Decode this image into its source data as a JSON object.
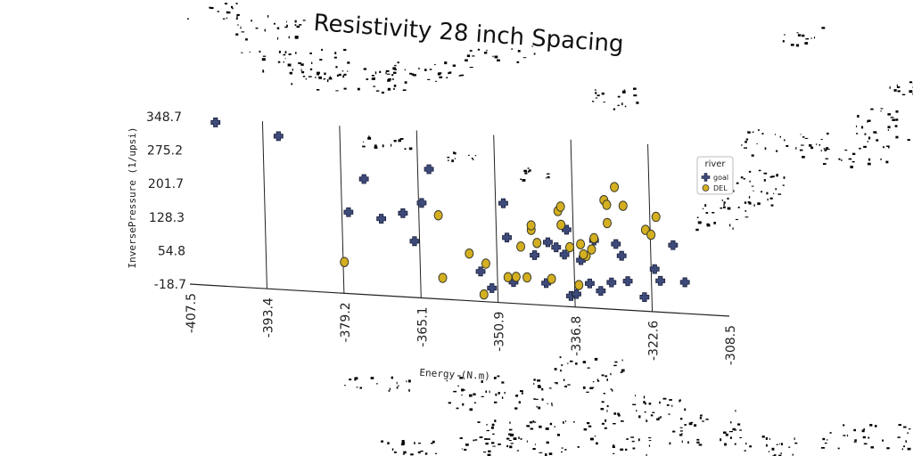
{
  "chart_data": {
    "type": "scatter",
    "title": "Resistivity 28 inch Spacing",
    "xlabel": "Energy (N.m)",
    "ylabel": "InversePressure (1/upsi)",
    "xlim": [
      -407.5,
      -308.5
    ],
    "ylim": [
      -18.7,
      348.7
    ],
    "x_ticks": [
      "-407.5",
      "-393.4",
      "-379.2",
      "-365.1",
      "-350.9",
      "-336.8",
      "-322.6",
      "-308.5"
    ],
    "y_ticks": [
      "-18.7",
      "54.8",
      "128.3",
      "201.7",
      "275.2",
      "348.7"
    ],
    "grid": "vertical",
    "legend": {
      "title": "river",
      "position": "right"
    },
    "series": [
      {
        "name": "goal",
        "marker": "plus",
        "color": "#3d4a7a",
        "points": [
          [
            -402.0,
            340
          ],
          [
            -390.5,
            318
          ],
          [
            -378.0,
            160
          ],
          [
            -375.0,
            235
          ],
          [
            -372.0,
            150
          ],
          [
            -368.0,
            165
          ],
          [
            -366.0,
            105
          ],
          [
            -363.0,
            265
          ],
          [
            -364.5,
            190
          ],
          [
            -354.0,
            47
          ],
          [
            -352.0,
            12
          ],
          [
            -349.5,
            200
          ],
          [
            -349.0,
            125
          ],
          [
            -348.0,
            28
          ],
          [
            -344.0,
            90
          ],
          [
            -342.0,
            30
          ],
          [
            -338.5,
            95
          ],
          [
            -338.0,
            150
          ],
          [
            -337.5,
            5
          ],
          [
            -336.5,
            10
          ],
          [
            -335.5,
            85
          ],
          [
            -334.0,
            35
          ],
          [
            -333.0,
            130
          ],
          [
            -332.0,
            20
          ],
          [
            -330.0,
            40
          ],
          [
            -328.0,
            100
          ],
          [
            -327.0,
            45
          ],
          [
            -324.0,
            12
          ],
          [
            -322.0,
            75
          ],
          [
            -321.0,
            50
          ],
          [
            -318.5,
            130
          ],
          [
            -316.5,
            50
          ],
          [
            -340.0,
            110
          ],
          [
            -341.5,
            120
          ],
          [
            -329.0,
            125
          ]
        ]
      },
      {
        "name": "DEL",
        "marker": "circle",
        "color": "#d4b020",
        "points": [
          [
            -379.0,
            50
          ],
          [
            -361.0,
            28
          ],
          [
            -361.5,
            165
          ],
          [
            -356.0,
            85
          ],
          [
            -353.5,
            -3
          ],
          [
            -353.0,
            65
          ],
          [
            -349.0,
            38
          ],
          [
            -347.5,
            40
          ],
          [
            -346.5,
            107
          ],
          [
            -345.5,
            40
          ],
          [
            -344.5,
            145
          ],
          [
            -344.5,
            155
          ],
          [
            -343.5,
            117
          ],
          [
            -341.0,
            40
          ],
          [
            -339.5,
            190
          ],
          [
            -339.0,
            160
          ],
          [
            -339.0,
            200
          ],
          [
            -337.5,
            112
          ],
          [
            -336.0,
            30
          ],
          [
            -335.5,
            120
          ],
          [
            -334.5,
            95
          ],
          [
            -333.5,
            110
          ],
          [
            -331.0,
            220
          ],
          [
            -330.5,
            210
          ],
          [
            -330.5,
            170
          ],
          [
            -329.0,
            250
          ],
          [
            -327.5,
            210
          ],
          [
            -323.5,
            160
          ],
          [
            -322.5,
            150
          ],
          [
            -321.5,
            190
          ],
          [
            -335.0,
            98
          ],
          [
            -333.0,
            135
          ]
        ]
      }
    ]
  }
}
